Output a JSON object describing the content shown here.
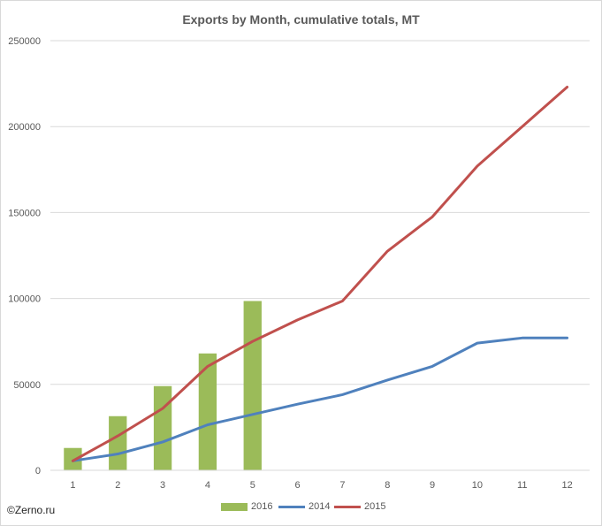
{
  "chart_data": {
    "type": "bar+line",
    "title": "Exports by Month, cumulative totals, MT",
    "xlabel": "",
    "ylabel": "",
    "categories": [
      "1",
      "2",
      "3",
      "4",
      "5",
      "6",
      "7",
      "8",
      "9",
      "10",
      "11",
      "12"
    ],
    "ylim": [
      0,
      250000
    ],
    "yticks": [
      "0",
      "50000",
      "100000",
      "150000",
      "200000",
      "250000"
    ],
    "grid": true,
    "legend_position": "bottom",
    "series": [
      {
        "name": "2016",
        "kind": "bar",
        "color": "#9bbb59",
        "values": [
          13000,
          31500,
          49000,
          68000,
          98500,
          null,
          null,
          null,
          null,
          null,
          null,
          null
        ]
      },
      {
        "name": "2014",
        "kind": "line",
        "color": "#4f81bd",
        "values": [
          5500,
          9500,
          16500,
          26500,
          32500,
          38500,
          44000,
          52500,
          60500,
          74000,
          77000,
          77000
        ]
      },
      {
        "name": "2015",
        "kind": "line",
        "color": "#c0504d",
        "values": [
          5500,
          20000,
          36000,
          60500,
          75000,
          87500,
          98500,
          127500,
          147500,
          177000,
          200000,
          223000
        ]
      }
    ]
  },
  "credit": "©Zerno.ru"
}
